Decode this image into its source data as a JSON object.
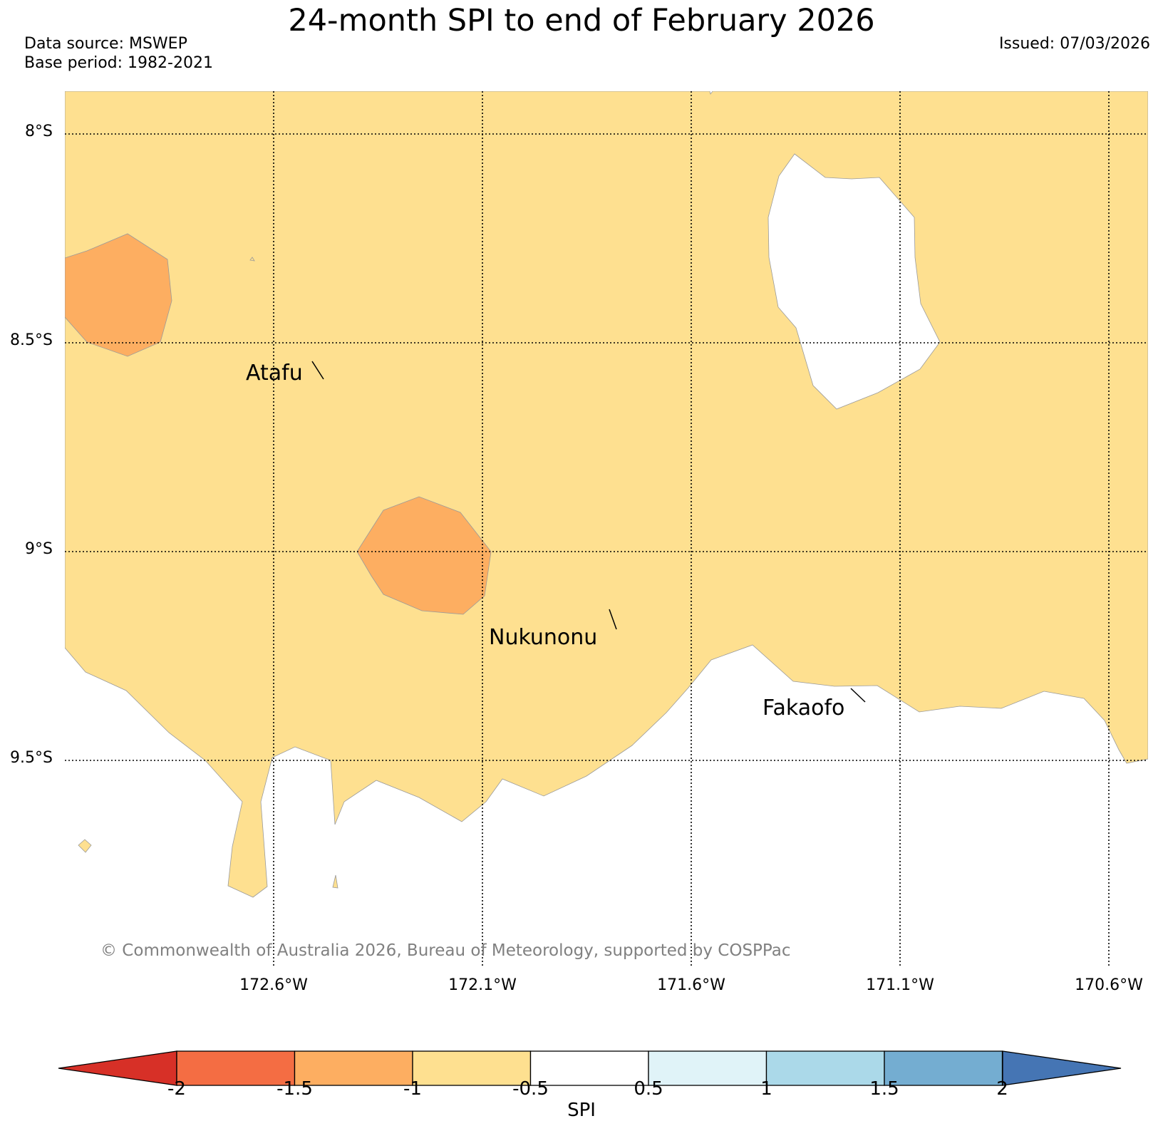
{
  "header": {
    "title": "24-month SPI to end of February 2026",
    "data_source": "Data source: MSWEP",
    "base_period": "Base period: 1982-2021",
    "issued": "Issued: 07/03/2026"
  },
  "axes": {
    "lat_labels": [
      "8°S",
      "8.5°S",
      "9°S",
      "9.5°S"
    ],
    "lon_labels": [
      "172.6°W",
      "172.1°W",
      "171.6°W",
      "171.1°W",
      "170.6°W"
    ]
  },
  "places": [
    {
      "name": "Atafu"
    },
    {
      "name": "Nukunonu"
    },
    {
      "name": "Fakaofo"
    }
  ],
  "credit": "© Commonwealth of Australia 2026, Bureau of Meteorology, supported by COSPPac",
  "colorbar": {
    "title": "SPI",
    "ticks": [
      "-2",
      "-1.5",
      "-1",
      "-0.5",
      "0.5",
      "1",
      "1.5",
      "2"
    ],
    "colors": {
      "below_-2": "#d73027",
      "-2_to_-1.5": "#f46d43",
      "-1.5_to_-1": "#fdae61",
      "-1_to_-0.5": "#fee090",
      "-0.5_to_0.5": "#ffffff",
      "0.5_to_1": "#e0f3f8",
      "1_to_1.5": "#abd9e9",
      "1.5_to_2": "#74add1",
      "above_2": "#4575b4"
    }
  },
  "map_colors": {
    "moderate_dry": "#fee090",
    "dry": "#fdae61",
    "near_normal": "#ffffff"
  }
}
